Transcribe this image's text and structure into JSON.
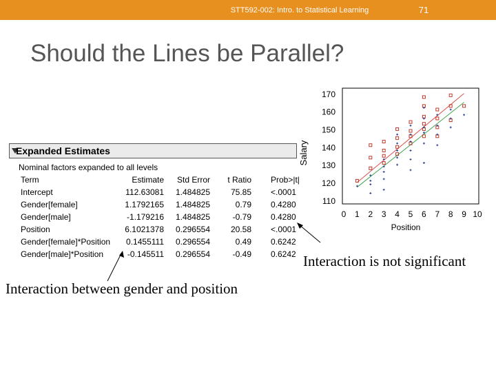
{
  "header": {
    "course": "STT592-002: Intro. to Statistical Learning",
    "slide_number": "71",
    "bar_color": "#e8901f"
  },
  "title": "Should the Lines be Parallel?",
  "estimates": {
    "heading": "Expanded Estimates",
    "subheading": "Nominal factors expanded to all levels",
    "columns": [
      "Term",
      "Estimate",
      "Std Error",
      "t Ratio",
      "Prob>|t|"
    ],
    "rows": [
      [
        "Intercept",
        "112.63081",
        "1.484825",
        "75.85",
        "<.0001"
      ],
      [
        "Gender[female]",
        "1.1792165",
        "1.484825",
        "0.79",
        "0.4280"
      ],
      [
        "Gender[male]",
        "-1.179216",
        "1.484825",
        "-0.79",
        "0.4280"
      ],
      [
        "Position",
        "6.1021378",
        "0.296554",
        "20.58",
        "<.0001"
      ],
      [
        "Gender[female]*Position",
        "0.1455111",
        "0.296554",
        "0.49",
        "0.6242"
      ],
      [
        "Gender[male]*Position",
        "-0.145511",
        "0.296554",
        "-0.49",
        "0.6242"
      ]
    ]
  },
  "notes": {
    "right": "Interaction is not significant",
    "left": "Interaction between gender and position"
  },
  "chart_data": {
    "type": "scatter",
    "xlabel": "Position",
    "ylabel": "Salary",
    "xlim": [
      0,
      10
    ],
    "ylim": [
      108,
      173
    ],
    "x_ticks": [
      "0",
      "1",
      "2",
      "3",
      "4",
      "5",
      "6",
      "7",
      "8",
      "9",
      "10"
    ],
    "y_ticks": [
      "110",
      "120",
      "130",
      "140",
      "150",
      "160",
      "170"
    ],
    "series": [
      {
        "group": "female",
        "marker": "square",
        "color": "#c0392b",
        "points": [
          [
            1,
            121
          ],
          [
            2,
            134
          ],
          [
            2,
            141
          ],
          [
            2,
            128
          ],
          [
            3,
            143
          ],
          [
            3,
            138
          ],
          [
            3,
            135
          ],
          [
            3,
            131
          ],
          [
            4,
            150
          ],
          [
            4,
            145
          ],
          [
            4,
            140
          ],
          [
            4,
            136
          ],
          [
            5,
            154
          ],
          [
            5,
            149
          ],
          [
            5,
            146
          ],
          [
            5,
            142
          ],
          [
            6,
            168
          ],
          [
            6,
            163
          ],
          [
            6,
            157
          ],
          [
            6,
            153
          ],
          [
            6,
            150
          ],
          [
            6,
            146
          ],
          [
            7,
            161
          ],
          [
            7,
            156
          ],
          [
            7,
            151
          ],
          [
            7,
            146
          ],
          [
            8,
            169
          ],
          [
            8,
            163
          ],
          [
            8,
            155
          ],
          [
            9,
            163
          ]
        ],
        "fit": {
          "intercept": 113.81,
          "slope": 6.247
        }
      },
      {
        "group": "male",
        "marker": "plus",
        "color": "#2c3e8f",
        "points": [
          [
            1,
            118
          ],
          [
            2,
            121
          ],
          [
            2,
            124
          ],
          [
            2,
            119
          ],
          [
            2,
            114
          ],
          [
            3,
            133
          ],
          [
            3,
            129
          ],
          [
            3,
            126
          ],
          [
            3,
            122
          ],
          [
            3,
            116
          ],
          [
            4,
            147
          ],
          [
            4,
            142
          ],
          [
            4,
            138
          ],
          [
            4,
            134
          ],
          [
            4,
            130
          ],
          [
            5,
            152
          ],
          [
            5,
            147
          ],
          [
            5,
            143
          ],
          [
            5,
            138
          ],
          [
            5,
            133
          ],
          [
            5,
            127
          ],
          [
            6,
            162
          ],
          [
            6,
            156
          ],
          [
            6,
            151
          ],
          [
            6,
            148
          ],
          [
            6,
            142
          ],
          [
            6,
            131
          ],
          [
            7,
            158
          ],
          [
            7,
            152
          ],
          [
            7,
            147
          ],
          [
            7,
            141
          ],
          [
            8,
            161
          ],
          [
            8,
            156
          ],
          [
            8,
            151
          ],
          [
            9,
            158
          ]
        ],
        "fit": {
          "intercept": 111.45,
          "slope": 5.957
        }
      }
    ],
    "fit_line_colors": {
      "female": "#d9534f",
      "male": "#3fa34d"
    }
  }
}
